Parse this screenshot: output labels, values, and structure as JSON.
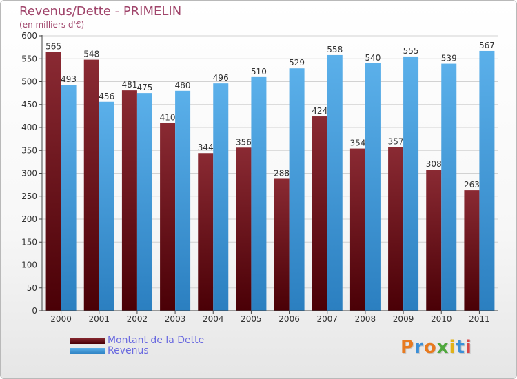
{
  "chart_data": {
    "type": "bar",
    "title": "Revenus/Dette - PRIMELIN",
    "subtitle": "(en milliers d'€)",
    "categories": [
      "2000",
      "2001",
      "2002",
      "2003",
      "2004",
      "2005",
      "2006",
      "2007",
      "2008",
      "2009",
      "2010",
      "2011"
    ],
    "series": [
      {
        "name": "Montant de la Dette",
        "color": "#6b0d12",
        "values": [
          565,
          548,
          481,
          410,
          344,
          356,
          288,
          424,
          354,
          357,
          308,
          263
        ]
      },
      {
        "name": "Revenus",
        "color": "#3f9ad8",
        "values": [
          493,
          456,
          475,
          480,
          496,
          510,
          529,
          558,
          540,
          555,
          539,
          567
        ]
      }
    ],
    "yticks": [
      0,
      50,
      100,
      150,
      200,
      250,
      300,
      350,
      400,
      450,
      500,
      550,
      600
    ],
    "ylim": [
      0,
      600
    ],
    "xlabel": "",
    "ylabel": "",
    "grid": true,
    "legend_position": "bottom-left"
  },
  "logo": {
    "letters": [
      "P",
      "r",
      "o",
      "x",
      "i",
      "t",
      "i"
    ],
    "colors": [
      "#e87a1f",
      "#3a8fd8",
      "#e87a1f",
      "#4fa83d",
      "#e0b21a",
      "#3a8fd8",
      "#d94545"
    ]
  }
}
